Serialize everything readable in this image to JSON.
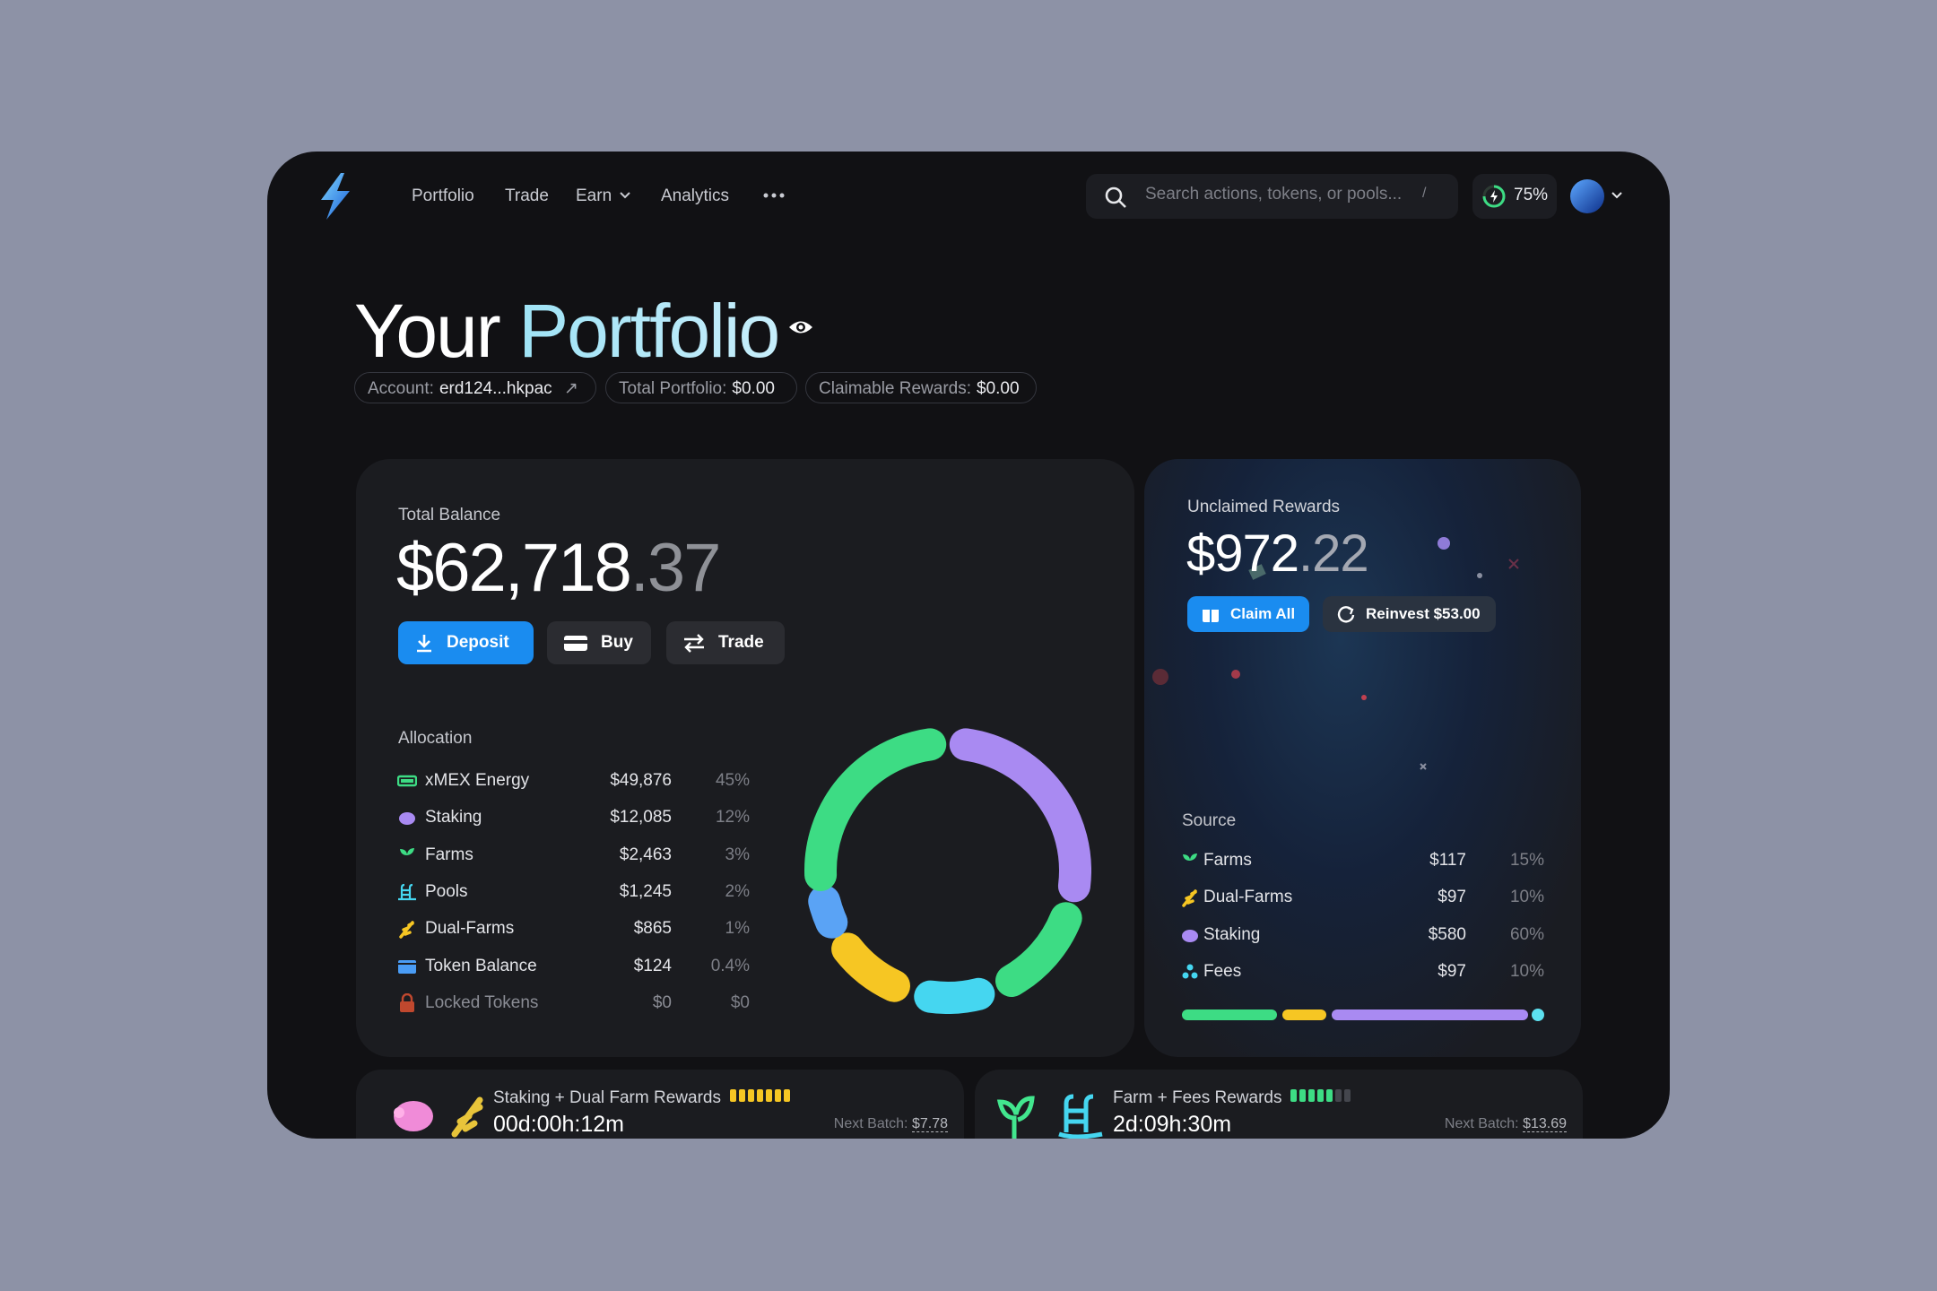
{
  "nav": {
    "items": [
      "Portfolio",
      "Trade",
      "Earn",
      "Analytics"
    ],
    "search": {
      "placeholder": "Search actions, tokens, or pools...",
      "shortcut": "/"
    },
    "energy": "75%"
  },
  "header": {
    "title": {
      "first": "Your",
      "second": "Portfolio"
    },
    "chips": [
      {
        "label": "Account:",
        "value": "erd124...hkpac"
      },
      {
        "label": "Total Portfolio:",
        "value": "$0.00"
      },
      {
        "label": "Claimable Rewards:",
        "value": "$0.00"
      }
    ]
  },
  "balance": {
    "label": "Total Balance",
    "amount": "$62,718",
    "cents": ".37",
    "actions": [
      "Deposit",
      "Buy",
      "Trade"
    ]
  },
  "allocation": {
    "title": "Allocation",
    "rows": [
      {
        "name": "xMEX Energy",
        "value": "$49,876",
        "share": "45%"
      },
      {
        "name": "Staking",
        "value": "$12,085",
        "share": "12%"
      },
      {
        "name": "Farms",
        "value": "$2,463",
        "share": "3%"
      },
      {
        "name": "Pools",
        "value": "$1,245",
        "share": "2%"
      },
      {
        "name": "Dual-Farms",
        "value": "$865",
        "share": "1%"
      },
      {
        "name": "Token Balance",
        "value": "$124",
        "share": "0.4%"
      },
      {
        "name": "Locked Tokens",
        "value": "$0",
        "share": "$0"
      }
    ]
  },
  "rewards": {
    "label": "Unclaimed Rewards",
    "amount": "$972",
    "cents": ".22",
    "actions": [
      "Claim All",
      "Reinvest $53.00"
    ],
    "source": {
      "title": "Source",
      "rows": [
        {
          "name": "Farms",
          "value": "$117",
          "share": "15%"
        },
        {
          "name": "Dual-Farms",
          "value": "$97",
          "share": "10%"
        },
        {
          "name": "Staking",
          "value": "$580",
          "share": "60%"
        },
        {
          "name": "Fees",
          "value": "$97",
          "share": "10%"
        }
      ]
    }
  },
  "batches": [
    {
      "title": "Staking + Dual Farm Rewards",
      "timer": "00d:00h:12m",
      "next_label": "Next Batch:",
      "next_value": "$7.78"
    },
    {
      "title": "Farm + Fees Rewards",
      "timer": "2d:09h:30m",
      "next_label": "Next Batch:",
      "next_value": "$13.69"
    }
  ]
}
